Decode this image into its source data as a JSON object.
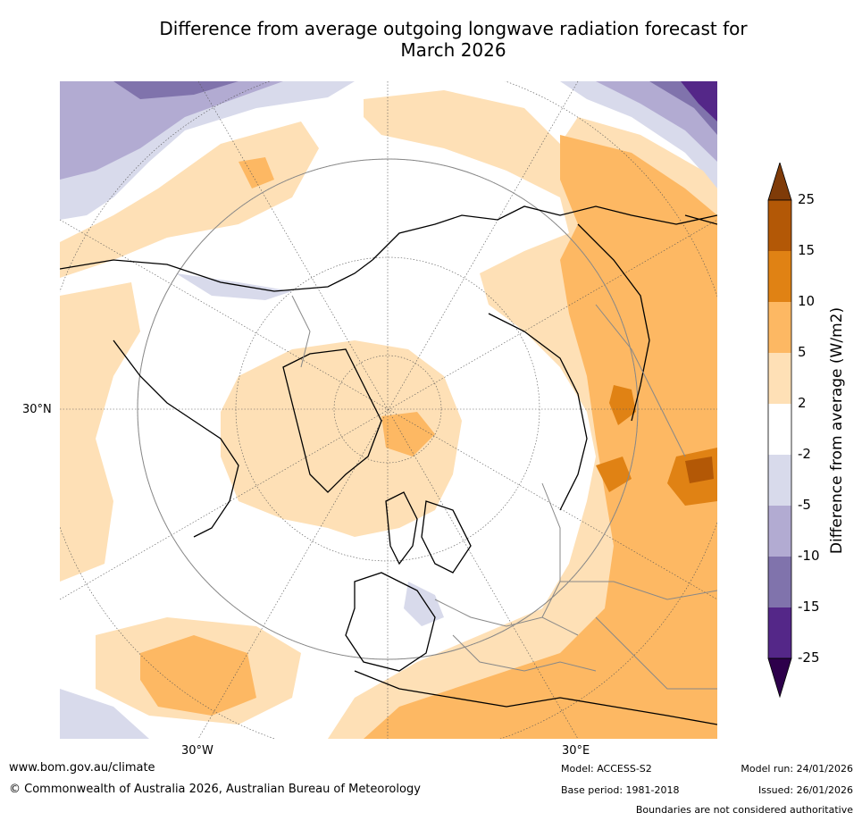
{
  "title_line1": "Difference from average outgoing longwave radiation forecast for",
  "title_line2": "March 2026",
  "map": {
    "lat_label": "30°N",
    "lon_label_west": "30°W",
    "lon_label_east": "30°E"
  },
  "colorbar": {
    "title": "Difference from average (W/m2)",
    "ticks": [
      "25",
      "15",
      "10",
      "5",
      "2",
      "-2",
      "-5",
      "-10",
      "-15",
      "-25"
    ],
    "colors": {
      "over": "#7f3b08",
      "c15_25": "#b35806",
      "c10_15": "#e08214",
      "c5_10": "#fdb863",
      "c2_5": "#fee0b6",
      "neutral": "#ffffff",
      "cm2_m5": "#d8daeb",
      "cm5_m10": "#b2abd2",
      "cm10_m15": "#8073ac",
      "cm15_m25": "#542788",
      "under": "#2d004b"
    }
  },
  "footer": {
    "website": "www.bom.gov.au/climate",
    "copyright": "© Commonwealth of Australia 2026, Australian Bureau of Meteorology",
    "model": "Model: ACCESS-S2",
    "base_period": "Base period: 1981-2018",
    "model_run": "Model run: 24/01/2026",
    "issued": "Issued: 26/01/2026",
    "disclaimer": "Boundaries are not considered authoritative"
  }
}
